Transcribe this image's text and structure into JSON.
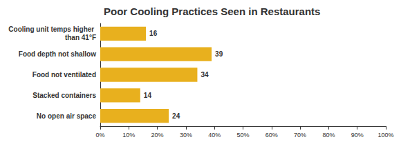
{
  "chart_data": {
    "type": "bar",
    "title": "Poor Cooling Practices Seen in Restaurants",
    "orientation": "horizontal",
    "categories": [
      "Cooling unit temps higher than 41°F",
      "Food depth not shallow",
      "Food not ventilated",
      "Stacked containers",
      "No open air space"
    ],
    "values": [
      16,
      39,
      34,
      14,
      24
    ],
    "color": "#e8b01e",
    "xlim": [
      0,
      100
    ],
    "xticks": [
      {
        "value": 0,
        "label": "0%"
      },
      {
        "value": 10,
        "label": "10%"
      },
      {
        "value": 20,
        "label": "20%"
      },
      {
        "value": 30,
        "label": "30%"
      },
      {
        "value": 40,
        "label": "40%"
      },
      {
        "value": 50,
        "label": "50%"
      },
      {
        "value": 60,
        "label": "60%"
      },
      {
        "value": 70,
        "label": "70%"
      },
      {
        "value": 80,
        "label": "80%"
      },
      {
        "value": 90,
        "label": "90%"
      },
      {
        "value": 100,
        "label": "100%"
      }
    ],
    "grid": false,
    "data_labels": true
  }
}
